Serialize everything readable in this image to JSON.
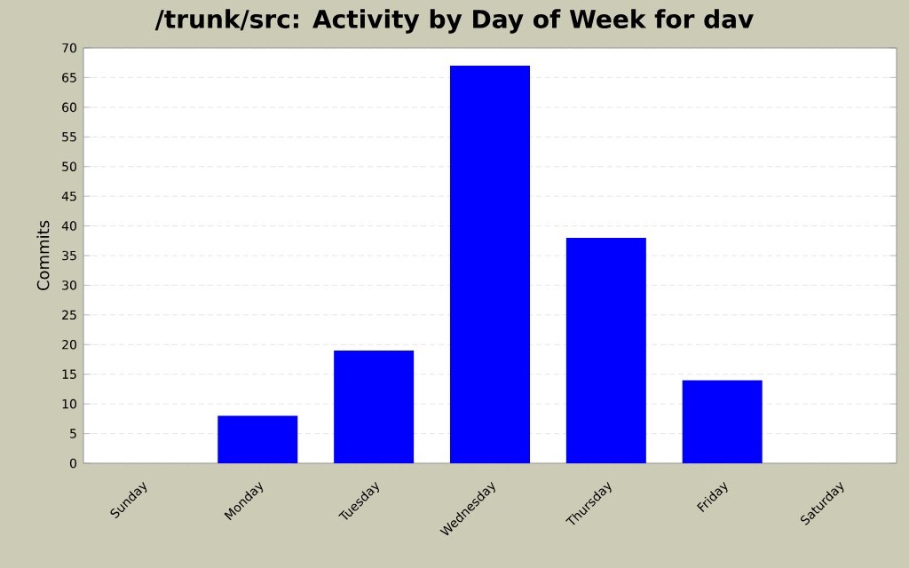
{
  "chart_data": {
    "type": "bar",
    "title": "/trunk/src: Activity by Day of Week for dav",
    "ylabel": "Commits",
    "categories": [
      "Sunday",
      "Monday",
      "Tuesday",
      "Wednesday",
      "Thursday",
      "Friday",
      "Saturday"
    ],
    "values": [
      0,
      8,
      19,
      67,
      38,
      14,
      0
    ],
    "color": "#0000ff",
    "ylim": [
      0,
      70
    ],
    "yticks": [
      0,
      5,
      10,
      15,
      20,
      25,
      30,
      35,
      40,
      45,
      50,
      55,
      60,
      65,
      70
    ],
    "grid": "y"
  }
}
